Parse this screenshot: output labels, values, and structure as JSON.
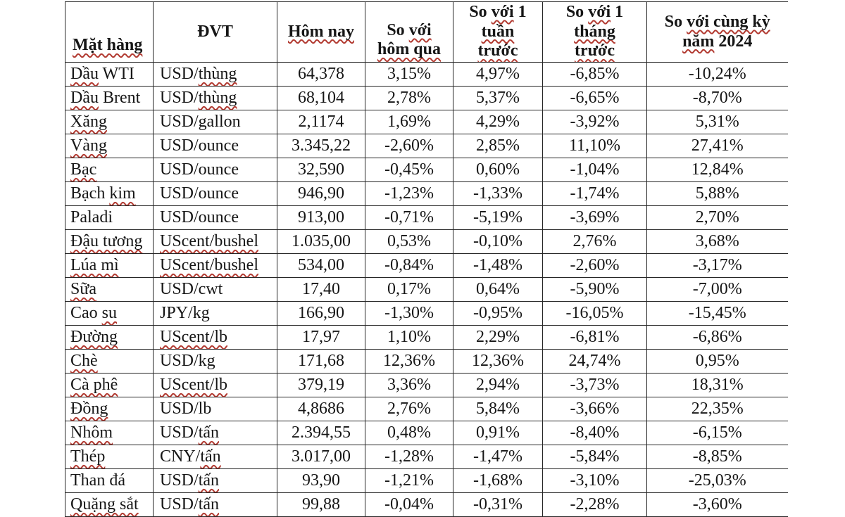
{
  "document": {
    "background_color": "#ffffff",
    "text_color": "#161616",
    "border_color": "#262626",
    "squiggle_color": "#b23b32"
  },
  "table": {
    "columns": [
      {
        "id": "mat-hang",
        "label": "Mặt hàng",
        "wavy": [
          "Mặt hàng"
        ]
      },
      {
        "id": "dvt",
        "label": "ĐVT",
        "wavy": []
      },
      {
        "id": "hom-nay",
        "label": "Hôm nay",
        "wavy": [
          "Hôm nay"
        ]
      },
      {
        "id": "so-voi-hom-qua",
        "label": "So với\nhôm qua",
        "wavy": [
          "với",
          "hôm qua"
        ]
      },
      {
        "id": "so-voi-1-tuan-truoc",
        "label": "So với 1\ntuần\ntrước",
        "wavy": [
          "với",
          "tuần",
          "trước"
        ]
      },
      {
        "id": "so-voi-1-thang-truoc",
        "label": "So với 1\ntháng\ntrước",
        "wavy": [
          "với",
          "tháng",
          "trước"
        ]
      },
      {
        "id": "so-voi-cung-ky-nam-2024",
        "label": "So với cùng kỳ\nnăm 2024",
        "wavy": [
          "với cùng kỳ",
          "năm"
        ]
      }
    ],
    "rows": [
      {
        "cells": [
          "Dầu WTI",
          "USD/thùng",
          "64,378",
          "3,15%",
          "4,97%",
          "-6,85%",
          "-10,24%"
        ],
        "wavy": {
          "0": [
            "Dầu"
          ],
          "1": [
            "thùng"
          ]
        }
      },
      {
        "cells": [
          "Dầu Brent",
          "USD/thùng",
          "68,104",
          "2,78%",
          "5,37%",
          "-6,65%",
          "-8,70%"
        ],
        "wavy": {
          "0": [
            "Dầu"
          ],
          "1": [
            "thùng"
          ]
        }
      },
      {
        "cells": [
          "Xăng",
          "USD/gallon",
          "2,1174",
          "1,69%",
          "4,29%",
          "-3,92%",
          "5,31%"
        ],
        "wavy": {
          "0": [
            "Xăng"
          ]
        }
      },
      {
        "cells": [
          "Vàng",
          "USD/ounce",
          "3.345,22",
          "-2,60%",
          "2,85%",
          "11,10%",
          "27,41%"
        ],
        "wavy": {
          "0": [
            "Vàng"
          ]
        }
      },
      {
        "cells": [
          "Bạc",
          "USD/ounce",
          "32,590",
          "-0,45%",
          "0,60%",
          "-1,04%",
          "12,84%"
        ],
        "wavy": {
          "0": [
            "Bạc"
          ]
        }
      },
      {
        "cells": [
          "Bạch kim",
          "USD/ounce",
          "946,90",
          "-1,23%",
          "-1,33%",
          "-1,74%",
          "5,88%"
        ],
        "wavy": {
          "0": [
            "kim"
          ]
        }
      },
      {
        "cells": [
          "Paladi",
          "USD/ounce",
          "913,00",
          "-0,71%",
          "-5,19%",
          "-3,69%",
          "2,70%"
        ],
        "wavy": {}
      },
      {
        "cells": [
          "Đậu tương",
          "UScent/bushel",
          "1.035,00",
          "0,53%",
          "-0,10%",
          "2,76%",
          "3,68%"
        ],
        "wavy": {
          "0": [
            "Đậu tương"
          ],
          "1": [
            "UScent/bushel"
          ]
        }
      },
      {
        "cells": [
          "Lúa mì",
          "UScent/bushel",
          "534,00",
          "-0,84%",
          "-1,48%",
          "-2,60%",
          "-3,17%"
        ],
        "wavy": {
          "0": [
            "Lúa mì"
          ],
          "1": [
            "UScent/bushel"
          ]
        }
      },
      {
        "cells": [
          "Sữa",
          "USD/cwt",
          "17,40",
          "0,17%",
          "0,64%",
          "-5,90%",
          "-7,00%"
        ],
        "wavy": {
          "0": [
            "Sữa"
          ]
        }
      },
      {
        "cells": [
          "Cao su",
          "JPY/kg",
          "166,90",
          "-1,30%",
          "-0,95%",
          "-16,05%",
          "-15,45%"
        ],
        "wavy": {
          "0": [
            "su"
          ]
        }
      },
      {
        "cells": [
          "Đường",
          "UScent/lb",
          "17,97",
          "1,10%",
          "2,29%",
          "-6,81%",
          "-6,86%"
        ],
        "wavy": {
          "0": [
            "Đường"
          ],
          "1": [
            "UScent/lb"
          ]
        }
      },
      {
        "cells": [
          "Chè",
          "USD/kg",
          "171,68",
          "12,36%",
          "12,36%",
          "24,74%",
          "0,95%"
        ],
        "wavy": {
          "0": [
            "Chè"
          ]
        }
      },
      {
        "cells": [
          "Cà phê",
          "UScent/lb",
          "379,19",
          "3,36%",
          "2,94%",
          "-3,73%",
          "18,31%"
        ],
        "wavy": {
          "0": [
            "Cà phê"
          ],
          "1": [
            "UScent/lb"
          ]
        }
      },
      {
        "cells": [
          "Đồng",
          "USD/lb",
          "4,8686",
          "2,76%",
          "5,84%",
          "-3,66%",
          "22,35%"
        ],
        "wavy": {
          "0": [
            "Đồng"
          ]
        }
      },
      {
        "cells": [
          "Nhôm",
          "USD/tấn",
          "2.394,55",
          "0,48%",
          "0,91%",
          "-8,40%",
          "-6,15%"
        ],
        "wavy": {
          "0": [
            "Nhôm"
          ],
          "1": [
            "tấn"
          ]
        }
      },
      {
        "cells": [
          "Thép",
          "CNY/tấn",
          "3.017,00",
          "-1,28%",
          "-1,47%",
          "-5,84%",
          "-8,85%"
        ],
        "wavy": {
          "0": [
            "Thép"
          ],
          "1": [
            "tấn"
          ]
        }
      },
      {
        "cells": [
          "Than đá",
          "USD/tấn",
          "93,90",
          "-1,21%",
          "-1,68%",
          "-3,10%",
          "-25,03%"
        ],
        "wavy": {
          "1": [
            "tấn"
          ]
        }
      },
      {
        "cells": [
          "Quặng sắt",
          "USD/tấn",
          "99,88",
          "-0,04%",
          "-0,31%",
          "-2,28%",
          "-3,60%"
        ],
        "wavy": {
          "0": [
            "Quặng sắt"
          ],
          "1": [
            "tấn"
          ]
        }
      }
    ]
  }
}
